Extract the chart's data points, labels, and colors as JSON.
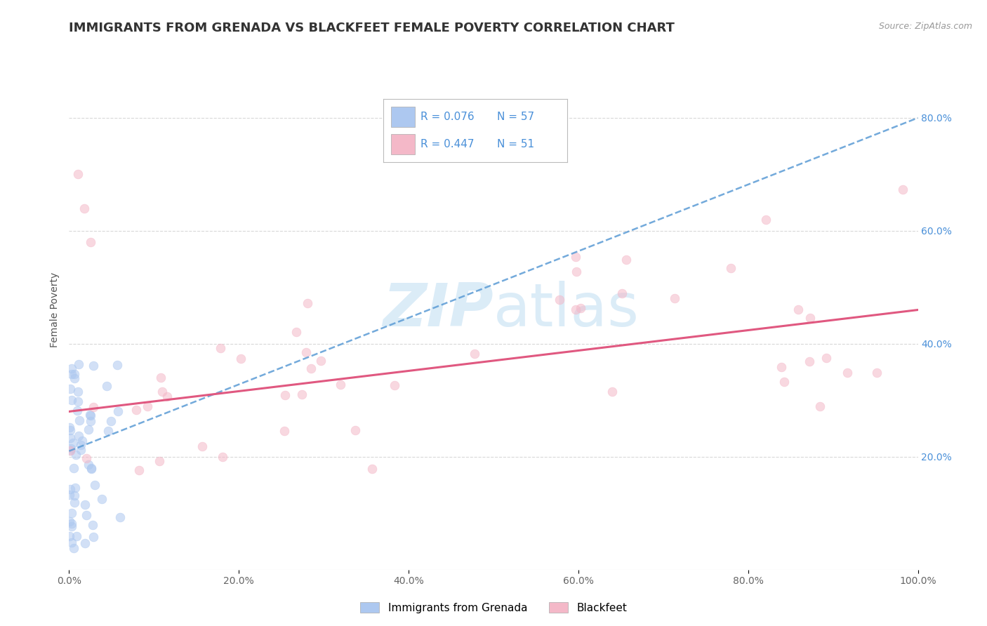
{
  "title": "IMMIGRANTS FROM GRENADA VS BLACKFEET FEMALE POVERTY CORRELATION CHART",
  "source": "Source: ZipAtlas.com",
  "ylabel": "Female Poverty",
  "xlim": [
    0.0,
    1.0
  ],
  "ylim": [
    0.0,
    0.92
  ],
  "x_tick_labels": [
    "0.0%",
    "20.0%",
    "40.0%",
    "60.0%",
    "80.0%",
    "100.0%"
  ],
  "x_tick_positions": [
    0.0,
    0.2,
    0.4,
    0.6,
    0.8,
    1.0
  ],
  "y_tick_labels": [
    "20.0%",
    "40.0%",
    "60.0%",
    "80.0%"
  ],
  "y_tick_positions": [
    0.2,
    0.4,
    0.6,
    0.8
  ],
  "legend_entries": [
    {
      "label": "Immigrants from Grenada",
      "R": "0.076",
      "N": "57",
      "color": "#adc8f0",
      "line_color": "#5b9bd5"
    },
    {
      "label": "Blackfeet",
      "R": "0.447",
      "N": "51",
      "color": "#f4b8c8",
      "line_color": "#e05880"
    }
  ],
  "background_color": "#ffffff",
  "grid_color": "#d8d8d8",
  "title_fontsize": 13,
  "axis_label_fontsize": 10,
  "tick_fontsize": 10,
  "scatter_size": 85,
  "scatter_alpha": 0.55,
  "watermark_color": "#cde4f5",
  "watermark_alpha": 0.7
}
